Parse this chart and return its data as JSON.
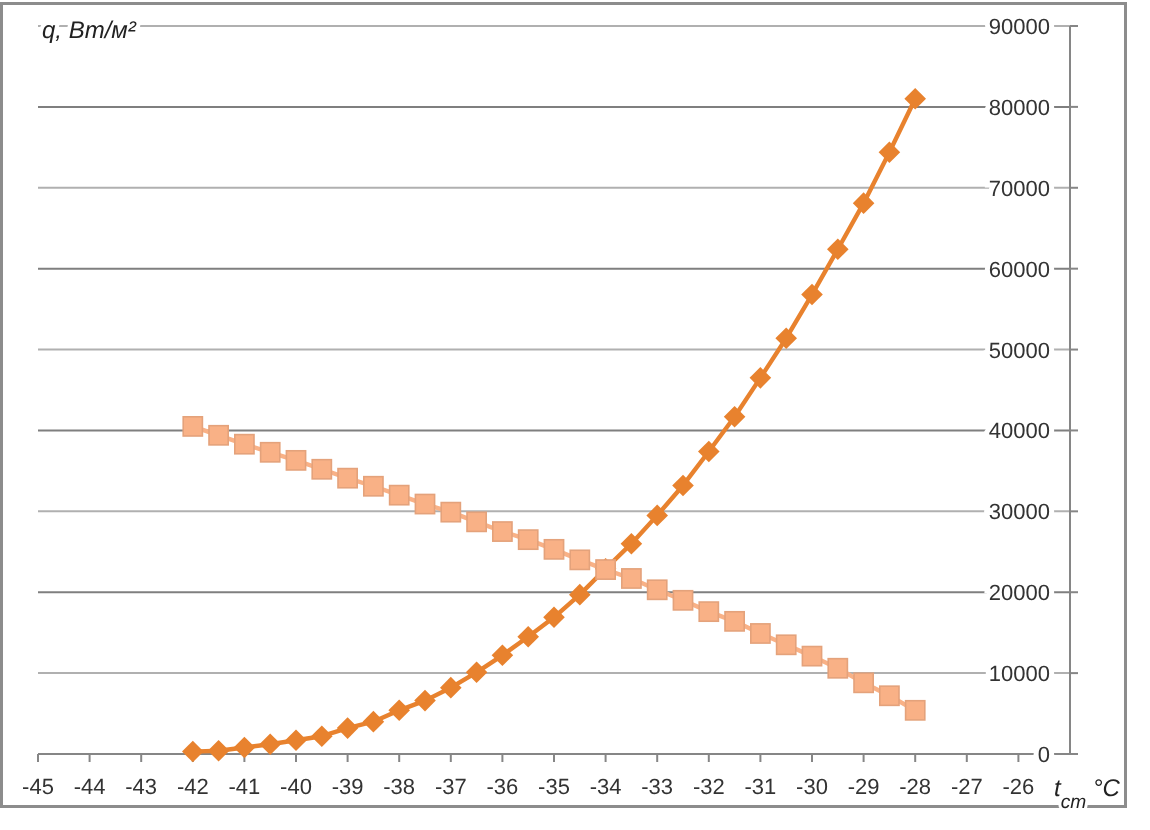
{
  "chart_data": {
    "type": "line",
    "xlabel": "t$_{ст}$ °C",
    "ylabel": "q, Вт/м²",
    "x": [
      -42,
      -41.5,
      -41,
      -40.5,
      -40,
      -39.5,
      -39,
      -38.5,
      -38,
      -37.5,
      -37,
      -36.5,
      -36,
      -35.5,
      -35,
      -34.5,
      -34,
      -33.5,
      -33,
      -32.5,
      -32,
      -31.5,
      -31,
      -30.5,
      -30,
      -29.5,
      -29,
      -28.5,
      -28
    ],
    "series": [
      {
        "color": "#e8822e",
        "marker": "diamond",
        "values": [
          300,
          400,
          800,
          1200,
          1700,
          2200,
          3200,
          4000,
          5400,
          6600,
          8200,
          10100,
          12200,
          14500,
          16900,
          19700,
          22900,
          26000,
          29500,
          33200,
          37400,
          41700,
          46500,
          51400,
          56800,
          62400,
          68100,
          74400,
          81000
        ]
      },
      {
        "color": "#f9b186",
        "marker": "square",
        "values": [
          40500,
          39400,
          38300,
          37300,
          36300,
          35200,
          34100,
          33100,
          32000,
          30900,
          29900,
          28700,
          27500,
          26500,
          25300,
          24000,
          22800,
          21700,
          20300,
          19000,
          17600,
          16400,
          14900,
          13500,
          12100,
          10600,
          8800,
          7200,
          5400
        ]
      }
    ],
    "xlim": [
      -45,
      -25
    ],
    "ylim": [
      0,
      90000
    ],
    "xticks": [
      -45,
      -44,
      -43,
      -42,
      -41,
      -40,
      -39,
      -38,
      -37,
      -36,
      -35,
      -34,
      -33,
      -32,
      -31,
      -30,
      -29,
      -28,
      -27,
      -26
    ],
    "yticks": [
      0,
      10000,
      20000,
      30000,
      40000,
      50000,
      60000,
      70000,
      80000,
      90000
    ],
    "grid": "y",
    "line_style": "solid"
  }
}
